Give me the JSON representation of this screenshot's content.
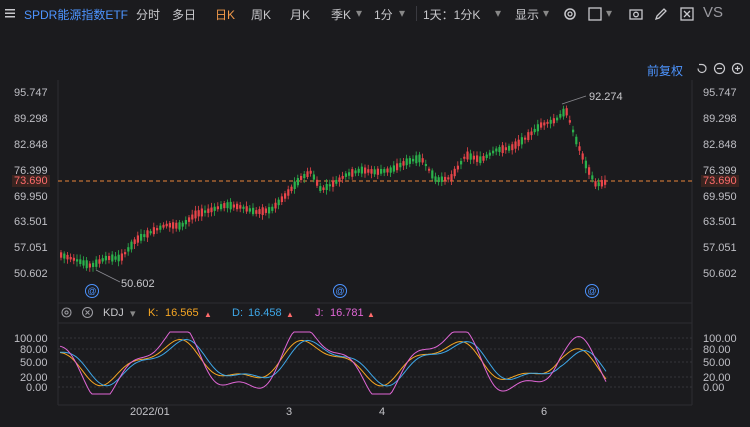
{
  "toolbar": {
    "symbol": "SPDR能源指数ETF",
    "items": [
      "分时",
      "多日",
      "日K",
      "周K",
      "月K",
      "季K",
      "1分",
      "1天：1分K",
      "显示"
    ],
    "active": "日K",
    "vs": "VS"
  },
  "chart": {
    "adjust_label": "前复权",
    "y_ticks": [
      "95.747",
      "89.298",
      "82.848",
      "76.399",
      "69.950",
      "63.501",
      "57.051",
      "50.602"
    ],
    "current_price": "73.690",
    "high_label": "92.274",
    "low_label": "50.602",
    "x_ticks": [
      "2022/01",
      "3",
      "4",
      "6"
    ]
  },
  "kdj": {
    "name": "KDJ",
    "k_label": "K:",
    "k_value": "16.565",
    "d_label": "D:",
    "d_value": "16.458",
    "j_label": "J:",
    "j_value": "16.781",
    "y_ticks": [
      "100.00",
      "80.00",
      "50.00",
      "20.00",
      "0.00"
    ]
  },
  "colors": {
    "up": "#e8454a",
    "down": "#2bb24c",
    "k": "#f5a623",
    "d": "#3ea7e8",
    "j": "#e066d6",
    "accent": "#4d94ff",
    "active": "#f2994a"
  }
}
